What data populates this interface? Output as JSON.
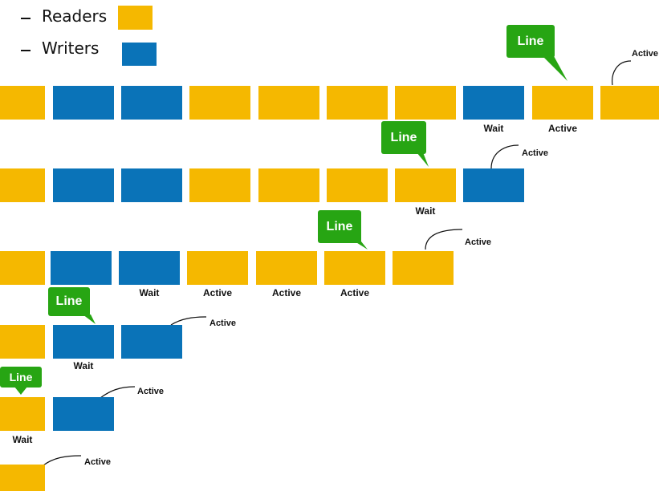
{
  "legend": {
    "readers_label": "Readers",
    "writers_label": "Writers"
  },
  "colors": {
    "reader": "#f5b800",
    "writer": "#0a73b8",
    "callout": "#27a513",
    "text": "#111111"
  },
  "callout_text": "Line",
  "rows": [
    {
      "blocks": [
        "reader",
        "writer",
        "writer",
        "reader",
        "reader",
        "reader",
        "reader",
        "writer",
        "reader",
        "reader"
      ],
      "labels": [
        "",
        "",
        "",
        "",
        "",
        "",
        "",
        "Wait",
        "Active",
        ""
      ],
      "active_label": "Active",
      "line_label": "Line"
    },
    {
      "blocks": [
        "reader",
        "writer",
        "writer",
        "reader",
        "reader",
        "reader",
        "reader",
        "writer"
      ],
      "labels": [
        "",
        "",
        "",
        "",
        "",
        "",
        "Wait",
        ""
      ],
      "active_label": "Active",
      "line_label": "Line"
    },
    {
      "blocks": [
        "reader",
        "writer",
        "writer",
        "reader",
        "reader",
        "reader",
        "reader"
      ],
      "labels": [
        "",
        "",
        "Wait",
        "Active",
        "Active",
        "Active",
        ""
      ],
      "active_label": "Active",
      "line_label": "Line"
    },
    {
      "blocks": [
        "reader",
        "writer",
        "writer"
      ],
      "labels": [
        "",
        "Wait",
        ""
      ],
      "active_label": "Active",
      "line_label": "Line"
    },
    {
      "blocks": [
        "reader",
        "writer"
      ],
      "labels": [
        "Wait",
        ""
      ],
      "active_label": "Active",
      "line_label": "Line"
    },
    {
      "blocks": [
        "reader"
      ],
      "labels": [
        ""
      ],
      "active_label": "Active"
    }
  ]
}
